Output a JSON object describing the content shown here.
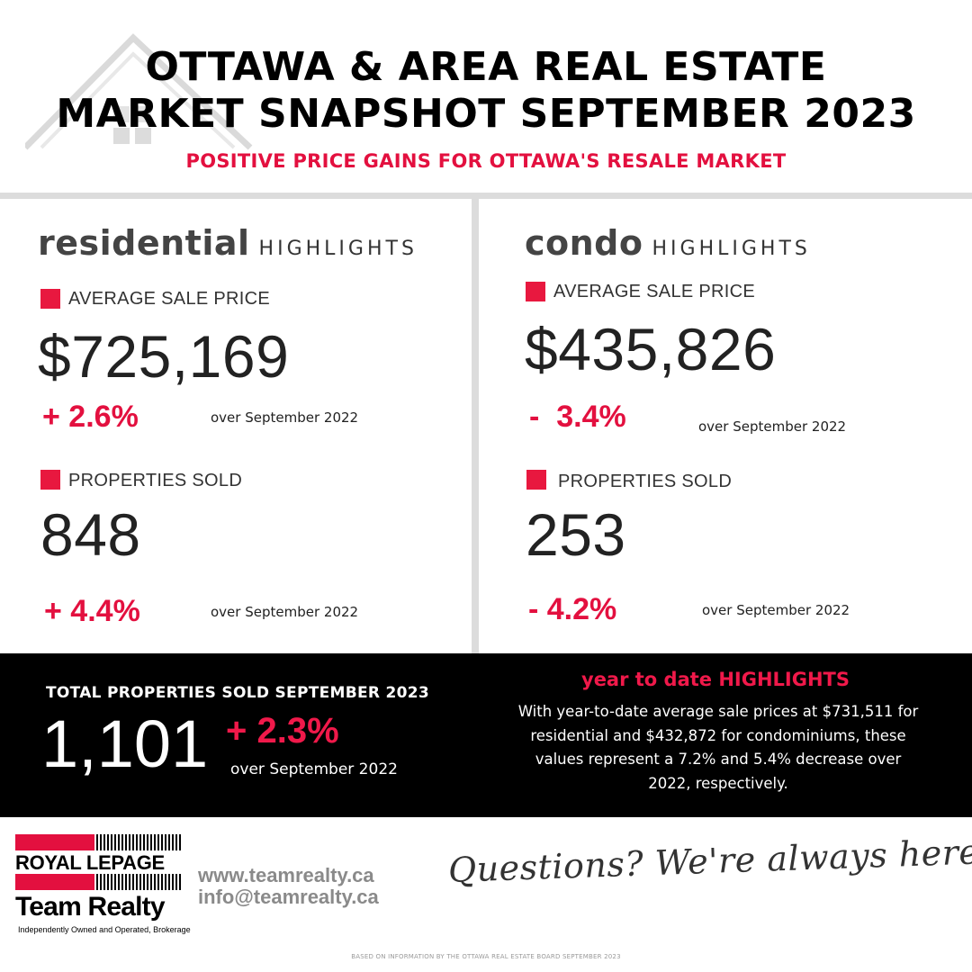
{
  "header": {
    "title_line1": "OTTAWA & AREA REAL ESTATE",
    "title_line2": "MARKET SNAPSHOT SEPTEMBER 2023",
    "subtitle": "POSITIVE PRICE GAINS FOR OTTAWA'S RESALE MARKET",
    "logo_icon": "house-outline-icon"
  },
  "residential": {
    "title_big": "residential",
    "title_small": "HIGHLIGHTS",
    "avg_label": "AVERAGE SALE PRICE",
    "avg_value": "$725,169",
    "avg_change": "+ 2.6%",
    "avg_compare": "over September 2022",
    "sold_label": "PROPERTIES SOLD",
    "sold_value": "848",
    "sold_change": "+ 4.4%",
    "sold_compare": "over September 2022"
  },
  "condo": {
    "title_big": "condo",
    "title_small": "HIGHLIGHTS",
    "avg_label": "AVERAGE SALE PRICE",
    "avg_value": "$435,826",
    "avg_change": "-  3.4%",
    "avg_compare": "over September 2022",
    "sold_label": "PROPERTIES SOLD",
    "sold_value": "253",
    "sold_change": "- 4.2%",
    "sold_compare": "over September 2022"
  },
  "totals": {
    "label": "TOTAL PROPERTIES SOLD SEPTEMBER 2023",
    "value": "1,101",
    "change": "+ 2.3%",
    "compare": "over September 2022"
  },
  "ytd": {
    "title": "year to date HIGHLIGHTS",
    "text": "With year-to-date average sale prices at $731,511 for residential and $432,872 for condominiums, these values represent a 7.2% and 5.4% decrease over 2022, respectively."
  },
  "footer": {
    "brand_line1": "ROYAL LEPAGE",
    "brand_line2": "Team Realty",
    "brand_tagline": "Independently Owned and Operated, Brokerage",
    "website": "www.teamrealty.ca",
    "email": "info@teamrealty.ca",
    "slogan": "Questions? We're always here to help",
    "source_note": "BASED ON INFORMATION BY THE OTTAWA REAL ESTATE BOARD SEPTEMBER 2023"
  },
  "colors": {
    "accent_red": "#e3103f",
    "band_black": "#000000",
    "divider_gray": "#dcdcdc"
  }
}
